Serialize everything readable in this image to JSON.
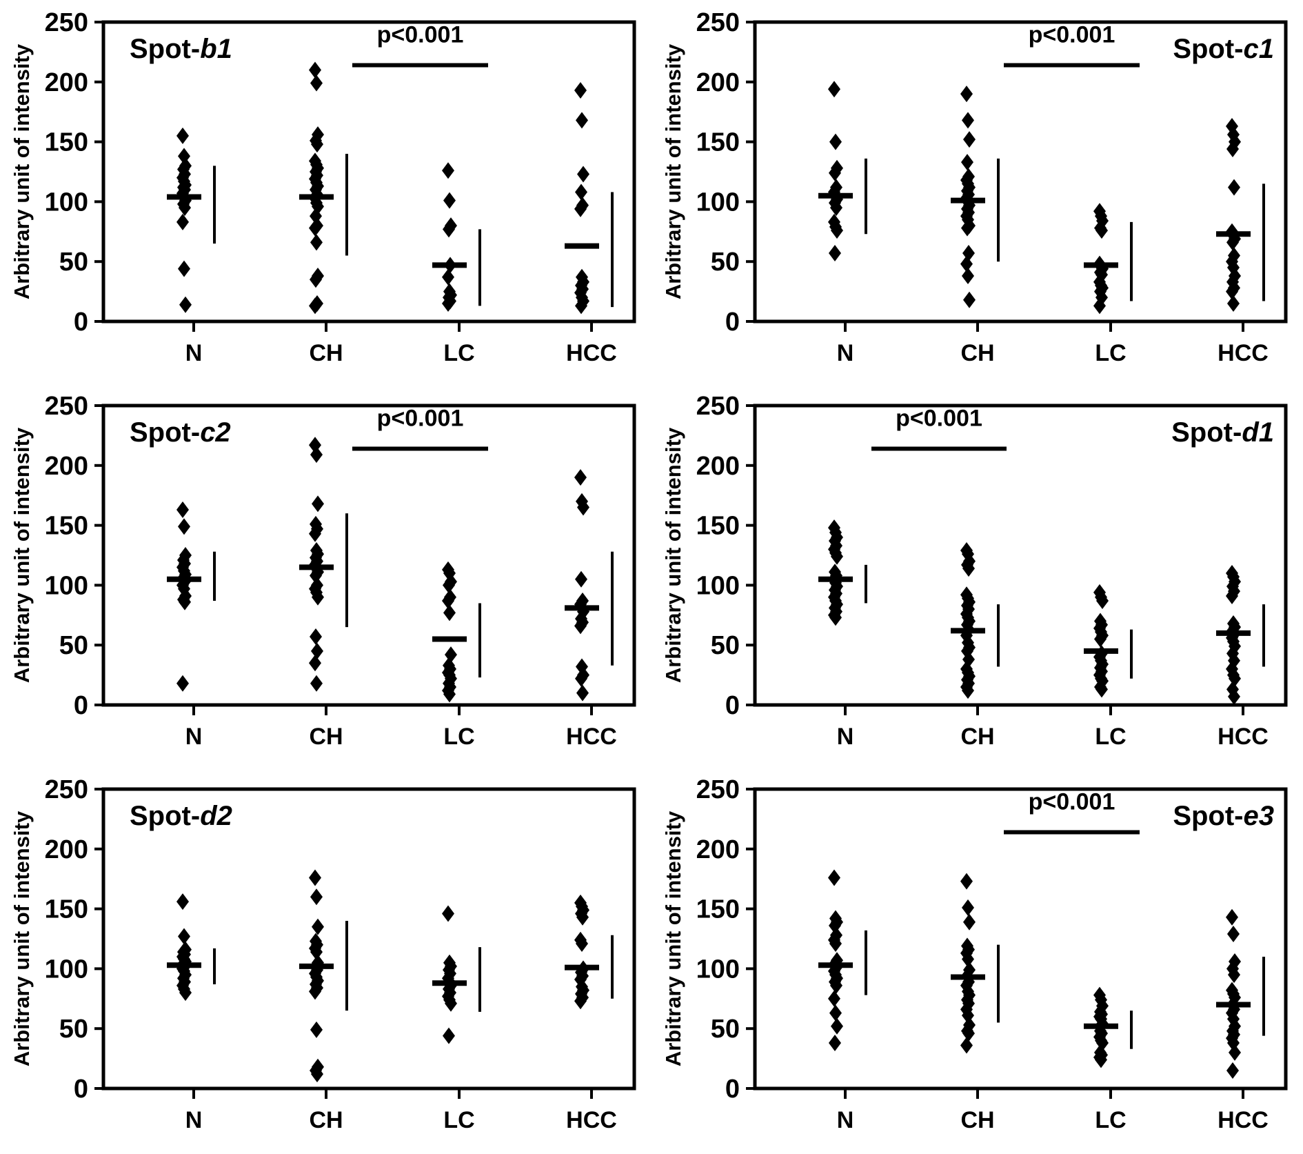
{
  "chart_data": {
    "type": "scatter",
    "title": "",
    "y_axis": {
      "title": "Arbitrary unit of intensity",
      "min": 0,
      "max": 250,
      "tick_step": 50,
      "ticks": [
        0,
        50,
        100,
        150,
        200,
        250
      ],
      "grid": false
    },
    "categories": [
      "N",
      "CH",
      "LC",
      "HCC"
    ],
    "marker": "diamond",
    "colors": {
      "foreground": "#000000",
      "background": "#ffffff"
    },
    "panels": [
      {
        "id": "spot-b1",
        "label_prefix": "Spot-",
        "label_suffix": "b1",
        "label_side": "left",
        "significance": {
          "from": "CH",
          "to": "LC",
          "label": "p<0.001"
        },
        "groups": [
          {
            "category": "N",
            "points": [
              155,
              138,
              130,
              127,
              123,
              120,
              117,
              114,
              112,
              110,
              107,
              104,
              101,
              98,
              95,
              83,
              44,
              14
            ],
            "mean": 104,
            "bar": [
              65,
              130
            ]
          },
          {
            "category": "CH",
            "points": [
              210,
              199,
              156,
              151,
              148,
              134,
              131,
              128,
              125,
              122,
              119,
              116,
              113,
              110,
              106,
              103,
              99,
              96,
              88,
              80,
              78,
              66,
              38,
              35,
              15,
              13
            ],
            "mean": 104,
            "bar": [
              55,
              140
            ]
          },
          {
            "category": "LC",
            "points": [
              126,
              101,
              80,
              77,
              47,
              37,
              25,
              22,
              20,
              17,
              15
            ],
            "mean": 47,
            "bar": [
              13,
              77
            ]
          },
          {
            "category": "HCC",
            "points": [
              193,
              168,
              123,
              108,
              97,
              94,
              37,
              33,
              30,
              27,
              24,
              20,
              17,
              13
            ],
            "mean": 63,
            "bar": [
              12,
              108
            ]
          }
        ]
      },
      {
        "id": "spot-c1",
        "label_prefix": "Spot-",
        "label_suffix": "c1",
        "label_side": "right",
        "significance": {
          "from": "CH",
          "to": "LC",
          "label": "p<0.001"
        },
        "groups": [
          {
            "category": "N",
            "points": [
              194,
              150,
              128,
              124,
              112,
              108,
              105,
              102,
              99,
              95,
              83,
              79,
              76,
              57
            ],
            "mean": 105,
            "bar": [
              73,
              136
            ]
          },
          {
            "category": "CH",
            "points": [
              190,
              168,
              152,
              133,
              121,
              118,
              115,
              112,
              109,
              106,
              103,
              100,
              97,
              94,
              91,
              88,
              85,
              80,
              78,
              57,
              48,
              38,
              18
            ],
            "mean": 101,
            "bar": [
              50,
              136
            ]
          },
          {
            "category": "LC",
            "points": [
              92,
              88,
              84,
              78,
              76,
              48,
              46,
              44,
              41,
              39,
              33,
              30,
              28,
              25,
              20,
              13
            ],
            "mean": 47,
            "bar": [
              17,
              83
            ]
          },
          {
            "category": "HCC",
            "points": [
              163,
              156,
              150,
              144,
              112,
              75,
              72,
              69,
              66,
              55,
              50,
              45,
              38,
              33,
              28,
              25,
              15
            ],
            "mean": 73,
            "bar": [
              17,
              115
            ]
          }
        ]
      },
      {
        "id": "spot-c2",
        "label_prefix": "Spot-",
        "label_suffix": "c2",
        "label_side": "left",
        "significance": {
          "from": "CH",
          "to": "LC",
          "label": "p<0.001"
        },
        "groups": [
          {
            "category": "N",
            "points": [
              163,
              149,
              125,
              121,
              118,
              115,
              112,
              109,
              106,
              103,
              100,
              97,
              91,
              88,
              86,
              18
            ],
            "mean": 105,
            "bar": [
              87,
              128
            ]
          },
          {
            "category": "CH",
            "points": [
              217,
              209,
              168,
              151,
              147,
              143,
              129,
              126,
              123,
              120,
              117,
              114,
              111,
              108,
              100,
              97,
              94,
              90,
              57,
              45,
              35,
              18
            ],
            "mean": 115,
            "bar": [
              65,
              160
            ]
          },
          {
            "category": "LC",
            "points": [
              113,
              110,
              103,
              100,
              90,
              87,
              77,
              42,
              33,
              30,
              27,
              25,
              22,
              18,
              15,
              12,
              9
            ],
            "mean": 55,
            "bar": [
              23,
              85
            ]
          },
          {
            "category": "HCC",
            "points": [
              190,
              170,
              165,
              105,
              87,
              84,
              81,
              78,
              72,
              69,
              66,
              32,
              25,
              22,
              10
            ],
            "mean": 81,
            "bar": [
              33,
              128
            ]
          }
        ]
      },
      {
        "id": "spot-d1",
        "label_prefix": "Spot-",
        "label_suffix": "d1",
        "label_side": "right",
        "significance": {
          "from": "N",
          "to": "CH",
          "label": "p<0.001"
        },
        "groups": [
          {
            "category": "N",
            "points": [
              148,
              144,
              140,
              137,
              133,
              130,
              127,
              124,
              111,
              108,
              105,
              102,
              99,
              96,
              93,
              90,
              87,
              84,
              81,
              78,
              75,
              73
            ],
            "mean": 105,
            "bar": [
              85,
              117
            ]
          },
          {
            "category": "CH",
            "points": [
              129,
              126,
              120,
              117,
              114,
              92,
              89,
              86,
              83,
              80,
              76,
              73,
              70,
              67,
              63,
              58,
              52,
              48,
              45,
              38,
              30,
              27,
              24,
              21,
              18,
              15,
              12
            ],
            "mean": 62,
            "bar": [
              32,
              84
            ]
          },
          {
            "category": "LC",
            "points": [
              94,
              90,
              87,
              70,
              67,
              64,
              61,
              58,
              55,
              43,
              40,
              37,
              34,
              31,
              28,
              25,
              22,
              20,
              15,
              13
            ],
            "mean": 45,
            "bar": [
              22,
              63
            ]
          },
          {
            "category": "HCC",
            "points": [
              110,
              107,
              103,
              99,
              95,
              91,
              68,
              65,
              62,
              59,
              56,
              53,
              49,
              43,
              37,
              30,
              25,
              22,
              13,
              7
            ],
            "mean": 60,
            "bar": [
              32,
              84
            ]
          }
        ]
      },
      {
        "id": "spot-d2",
        "label_prefix": "Spot-",
        "label_suffix": "d2",
        "label_side": "left",
        "significance": null,
        "groups": [
          {
            "category": "N",
            "points": [
              156,
              127,
              116,
              114,
              112,
              110,
              108,
              106,
              104,
              102,
              100,
              98,
              95,
              92,
              89,
              86,
              83,
              80
            ],
            "mean": 103,
            "bar": [
              87,
              117
            ]
          },
          {
            "category": "CH",
            "points": [
              176,
              160,
              135,
              123,
              120,
              117,
              114,
              105,
              102,
              99,
              96,
              93,
              90,
              87,
              84,
              81,
              49,
              18,
              15,
              12
            ],
            "mean": 102,
            "bar": [
              65,
              140
            ]
          },
          {
            "category": "LC",
            "points": [
              146,
              105,
              102,
              99,
              96,
              92,
              89,
              86,
              83,
              80,
              77,
              74,
              71,
              44
            ],
            "mean": 88,
            "bar": [
              64,
              118
            ]
          },
          {
            "category": "HCC",
            "points": [
              155,
              152,
              149,
              146,
              143,
              124,
              121,
              100,
              97,
              94,
              91,
              85,
              82,
              79,
              76,
              73
            ],
            "mean": 101,
            "bar": [
              75,
              128
            ]
          }
        ]
      },
      {
        "id": "spot-e3",
        "label_prefix": "Spot-",
        "label_suffix": "e3",
        "label_side": "right",
        "significance": {
          "from": "CH",
          "to": "LC",
          "label": "p<0.001"
        },
        "groups": [
          {
            "category": "N",
            "points": [
              176,
              142,
              139,
              136,
              128,
              124,
              121,
              107,
              104,
              101,
              98,
              95,
              92,
              89,
              86,
              75,
              63,
              52,
              38
            ],
            "mean": 103,
            "bar": [
              78,
              132
            ]
          },
          {
            "category": "CH",
            "points": [
              173,
              151,
              139,
              119,
              116,
              113,
              108,
              99,
              94,
              89,
              86,
              81,
              78,
              74,
              71,
              66,
              61,
              53,
              48,
              46,
              36
            ],
            "mean": 93,
            "bar": [
              55,
              120
            ]
          },
          {
            "category": "LC",
            "points": [
              78,
              74,
              69,
              64,
              62,
              60,
              58,
              54,
              48,
              46,
              43,
              40,
              38,
              30,
              28,
              26,
              24
            ],
            "mean": 52,
            "bar": [
              33,
              65
            ]
          },
          {
            "category": "HCC",
            "points": [
              143,
              129,
              106,
              100,
              95,
              82,
              79,
              76,
              70,
              66,
              63,
              58,
              52,
              48,
              45,
              42,
              38,
              30,
              15
            ],
            "mean": 70,
            "bar": [
              44,
              110
            ]
          }
        ]
      }
    ]
  }
}
